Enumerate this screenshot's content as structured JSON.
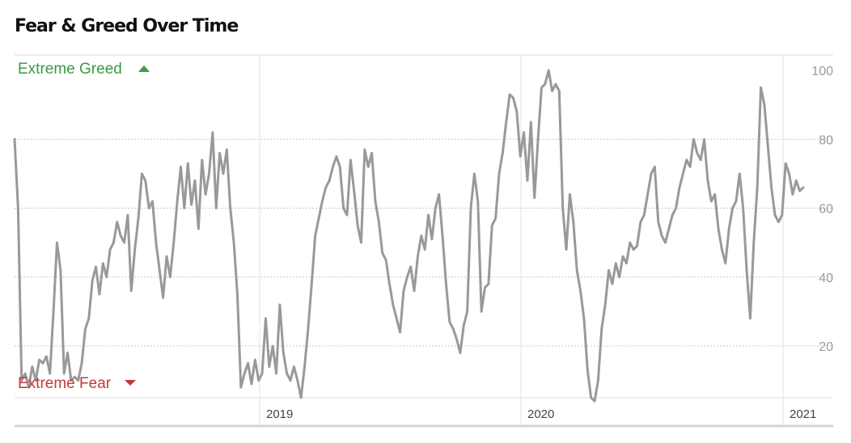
{
  "header": {
    "title": "Fear & Greed Over Time"
  },
  "colors": {
    "greed": "#3a9a45",
    "fear": "#c0393b",
    "line": "#999999"
  },
  "chart_data": {
    "type": "line",
    "title": "Fear & Greed Over Time",
    "xlabel": "",
    "ylabel": "",
    "ylim": [
      0,
      100
    ],
    "y_ticks": [
      "20",
      "40",
      "60",
      "80",
      "100"
    ],
    "x_ticks": [
      "2019",
      "2020",
      "2021"
    ],
    "grid": true,
    "annotations": {
      "top": "Extreme Greed",
      "bottom": "Extreme Fear"
    },
    "series": [
      {
        "values": [
          80,
          60,
          10,
          12,
          8,
          14,
          10,
          16,
          15,
          17,
          12,
          30,
          50,
          42,
          12,
          18,
          10,
          11,
          10,
          15,
          25,
          28,
          39,
          43,
          35,
          44,
          40,
          48,
          50,
          56,
          52,
          50,
          58,
          36,
          48,
          57,
          70,
          68,
          60,
          62,
          50,
          42,
          34,
          46,
          40,
          50,
          62,
          72,
          60,
          73,
          61,
          68,
          54,
          74,
          64,
          70,
          82,
          60,
          76,
          70,
          77,
          60,
          50,
          35,
          8,
          12,
          15,
          9,
          16,
          10,
          12,
          28,
          14,
          20,
          12,
          32,
          18,
          12,
          10,
          14,
          10,
          5,
          14,
          25,
          38,
          52,
          57,
          62,
          66,
          68,
          72,
          75,
          72,
          60,
          58,
          74,
          65,
          55,
          50,
          77,
          72,
          76,
          62,
          56,
          47,
          45,
          38,
          32,
          28,
          24,
          36,
          40,
          43,
          36,
          46,
          52,
          48,
          58,
          51,
          60,
          64,
          52,
          38,
          27,
          25,
          22,
          18,
          26,
          30,
          60,
          70,
          62,
          30,
          37,
          38,
          55,
          57,
          70,
          76,
          85,
          93,
          92,
          88,
          75,
          82,
          68,
          85,
          63,
          80,
          95,
          96,
          100,
          94,
          96,
          94,
          60,
          48,
          64,
          56,
          42,
          36,
          28,
          13,
          5,
          4,
          10,
          25,
          32,
          42,
          38,
          44,
          40,
          46,
          44,
          50,
          48,
          49,
          56,
          58,
          64,
          70,
          72,
          56,
          52,
          50,
          54,
          58,
          60,
          66,
          70,
          74,
          72,
          80,
          76,
          74,
          80,
          68,
          62,
          64,
          54,
          48,
          44,
          54,
          60,
          62,
          70,
          60,
          42,
          28,
          50,
          66,
          95,
          90,
          78,
          66,
          58,
          56,
          58,
          73,
          70,
          64,
          68,
          65,
          66
        ]
      }
    ]
  }
}
